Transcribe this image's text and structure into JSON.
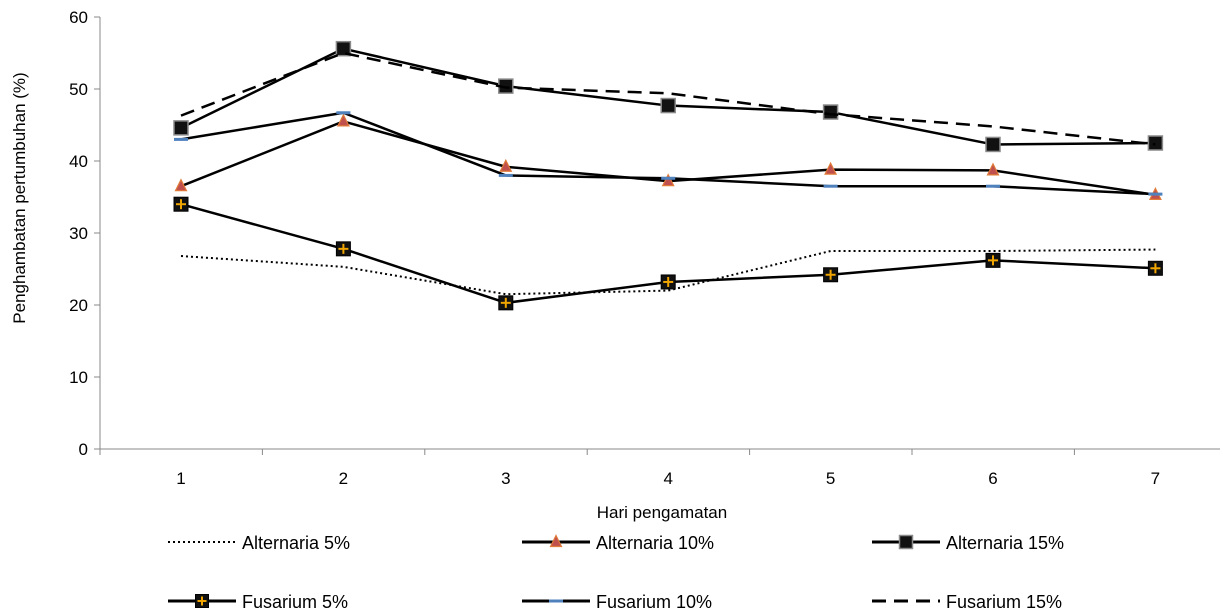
{
  "chart_data": {
    "type": "line",
    "title": "",
    "xlabel": "Hari pengamatan",
    "ylabel": "Penghambatan pertumbuhan (%)",
    "x": [
      1,
      2,
      3,
      4,
      5,
      6,
      7
    ],
    "xticks": [
      "1",
      "2",
      "3",
      "4",
      "5",
      "6",
      "7"
    ],
    "ylim": [
      0,
      60
    ],
    "yticks": [
      "0",
      "10",
      "20",
      "30",
      "40",
      "50",
      "60"
    ],
    "grid": false,
    "legend_position": "bottom",
    "series": [
      {
        "name": "Alternaria 5%",
        "values": [
          26.8,
          25.3,
          21.5,
          22.0,
          27.5,
          27.5,
          27.7
        ],
        "line": "dotted",
        "marker": "none",
        "color": "#000000"
      },
      {
        "name": "Alternaria 10%",
        "values": [
          36.5,
          45.5,
          39.2,
          37.2,
          38.8,
          38.7,
          35.3
        ],
        "line": "solid",
        "marker": "triangle",
        "color": "#000000",
        "marker_fill": "#c0504d",
        "marker_stroke": "#e07b39"
      },
      {
        "name": "Alternaria 15%",
        "values": [
          44.6,
          55.6,
          50.4,
          47.7,
          46.8,
          42.3,
          42.5
        ],
        "line": "solid",
        "marker": "square",
        "color": "#000000",
        "marker_fill": "#111111",
        "marker_stroke": "#8a8a8a"
      },
      {
        "name": "Fusarium 5%",
        "values": [
          34.0,
          27.8,
          20.3,
          23.2,
          24.2,
          26.2,
          25.1
        ],
        "line": "solid",
        "marker": "square-plus",
        "color": "#000000",
        "marker_fill": "#111111",
        "marker_stroke": "#f0a500"
      },
      {
        "name": "Fusarium 10%",
        "values": [
          43.0,
          46.7,
          38.0,
          37.6,
          36.5,
          36.5,
          35.4
        ],
        "line": "solid",
        "marker": "dash",
        "color": "#000000",
        "marker_fill": "#4f81bd",
        "marker_stroke": "#4f81bd"
      },
      {
        "name": "Fusarium 15%",
        "values": [
          46.3,
          55.0,
          50.2,
          49.4,
          46.5,
          44.8,
          42.3
        ],
        "line": "dashed",
        "marker": "none",
        "color": "#000000"
      }
    ]
  }
}
